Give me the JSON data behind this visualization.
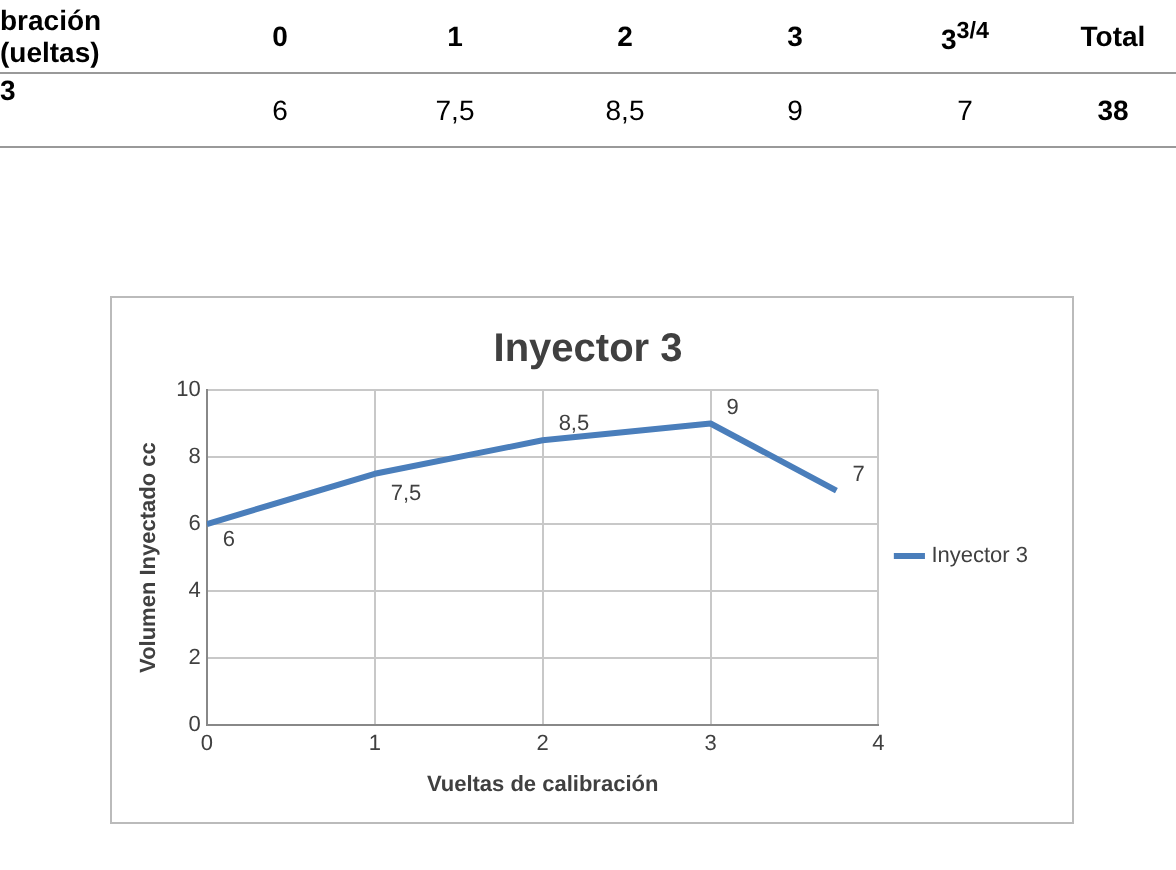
{
  "chart_data": {
    "type": "line",
    "title": "Inyector 3",
    "xlabel": "Vueltas de calibración",
    "ylabel": "Volumen Inyectado cc",
    "x": [
      0,
      1,
      2,
      3,
      3.75
    ],
    "series": [
      {
        "name": "Inyector 3",
        "color": "#4a7ebb",
        "values": [
          6,
          7.5,
          8.5,
          9,
          7
        ],
        "value_labels": [
          "6",
          "7,5",
          "8,5",
          "9",
          "7"
        ]
      }
    ],
    "xlim": [
      0,
      4
    ],
    "xticks": [
      0,
      1,
      2,
      3,
      4
    ],
    "ylim": [
      0,
      10
    ],
    "yticks": [
      0,
      2,
      4,
      6,
      8,
      10
    ],
    "grid": true,
    "legend": "right",
    "marker": "none",
    "line_style": "solid",
    "annotations": [
      "bración (ueltas)",
      "0",
      "1",
      "2",
      "3",
      "3$^{3/4}$",
      "Total",
      "3",
      "6",
      "7,5",
      "8,5",
      "9",
      "7",
      "38"
    ]
  }
}
